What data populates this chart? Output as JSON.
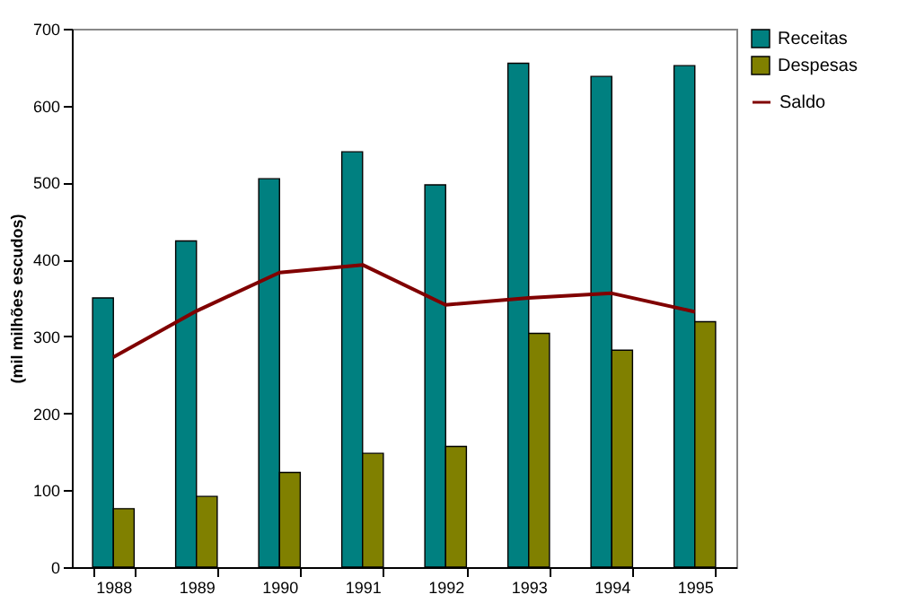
{
  "chart_data": {
    "type": "bar",
    "ylabel": "(mil milhões escudos)",
    "categories": [
      "1988",
      "1989",
      "1990",
      "1991",
      "1992",
      "1993",
      "1994",
      "1995"
    ],
    "series": [
      {
        "name": "Receitas",
        "color": "#008080",
        "values": [
          350,
          424,
          505,
          540,
          497,
          655,
          638,
          652
        ]
      },
      {
        "name": "Despesas",
        "color": "#808000",
        "values": [
          76,
          92,
          123,
          148,
          157,
          304,
          282,
          319
        ]
      },
      {
        "name": "Saldo",
        "type": "line",
        "color": "#800000",
        "values": [
          273,
          333,
          383,
          393,
          341,
          350,
          356,
          332
        ]
      }
    ],
    "ylim": [
      0,
      700
    ],
    "yticks": [
      0,
      100,
      200,
      300,
      400,
      500,
      600,
      700
    ],
    "grid": false,
    "legend": "right",
    "marker": "none"
  }
}
